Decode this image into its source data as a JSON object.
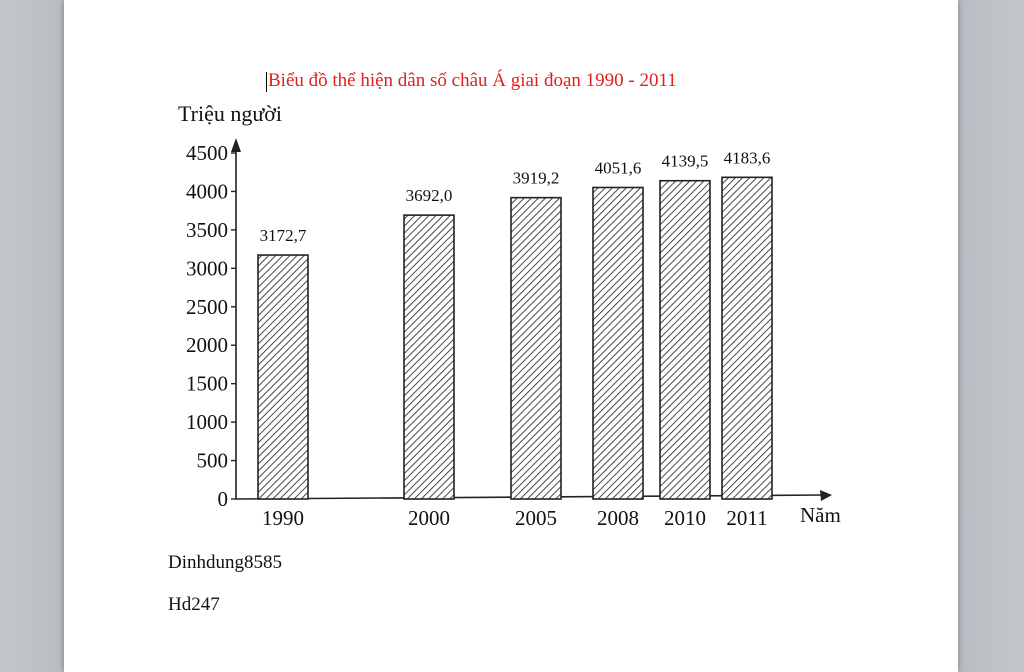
{
  "chart_data": {
    "type": "bar",
    "title": "Biểu đồ thể hiện dân số châu Á giai đoạn 1990 - 2011",
    "ylabel": "Triệu người",
    "xlabel": "Năm",
    "categories": [
      "1990",
      "2000",
      "2005",
      "2008",
      "2010",
      "2011"
    ],
    "values": [
      3172.7,
      3692.0,
      3919.2,
      4051.6,
      4139.5,
      4183.6
    ],
    "value_labels": [
      "3172,7",
      "3692,0",
      "3919,2",
      "4051,6",
      "4139,5",
      "4183,6"
    ],
    "yticks": [
      0,
      500,
      1000,
      1500,
      2000,
      2500,
      3000,
      3500,
      4000,
      4500
    ],
    "ylim": [
      0,
      4500
    ],
    "bar_fill": "diagonal-hatch",
    "grid": false,
    "colors": {
      "title": "#e0201e",
      "bars": "#333333"
    }
  },
  "notes": [
    "Dinhdung8585",
    "Hd247"
  ]
}
